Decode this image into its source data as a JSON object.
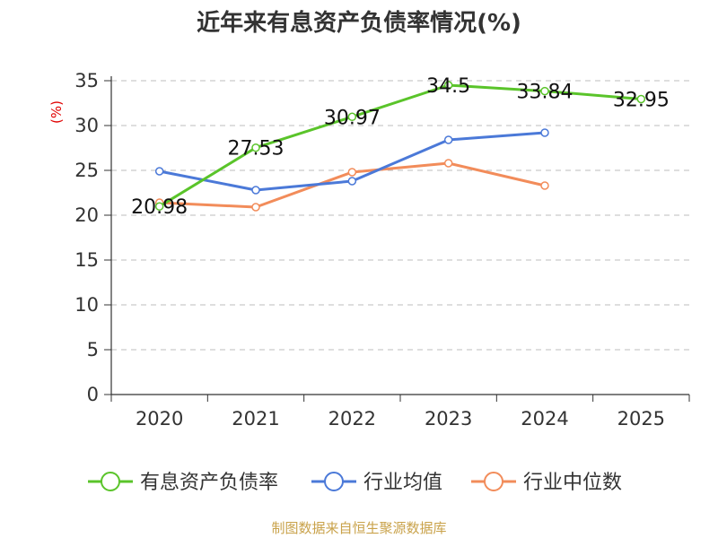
{
  "chart_data": {
    "type": "line",
    "title": "近年来有息资产负债率情况(%)",
    "xlabel": "",
    "ylabel": "(%)",
    "categories": [
      "2020",
      "2021",
      "2022",
      "2023",
      "2024",
      "2025"
    ],
    "ylim": [
      0,
      35
    ],
    "yticks": [
      0,
      5,
      10,
      15,
      20,
      25,
      30,
      35
    ],
    "grid": true,
    "legend_position": "bottom",
    "series": [
      {
        "name": "有息资产负债率",
        "color": "#5ac42a",
        "values": [
          20.98,
          27.53,
          30.97,
          34.5,
          33.84,
          32.95
        ],
        "labels": [
          "20.98",
          "27.53",
          "30.97",
          "34.5",
          "33.84",
          "32.95"
        ]
      },
      {
        "name": "行业均值",
        "color": "#4b79d8",
        "values": [
          24.9,
          22.8,
          23.8,
          28.4,
          29.2,
          null
        ]
      },
      {
        "name": "行业中位数",
        "color": "#f28c5a",
        "values": [
          21.4,
          20.9,
          24.8,
          25.8,
          23.3,
          null
        ]
      }
    ],
    "source": "制图数据来自恒生聚源数据库"
  }
}
